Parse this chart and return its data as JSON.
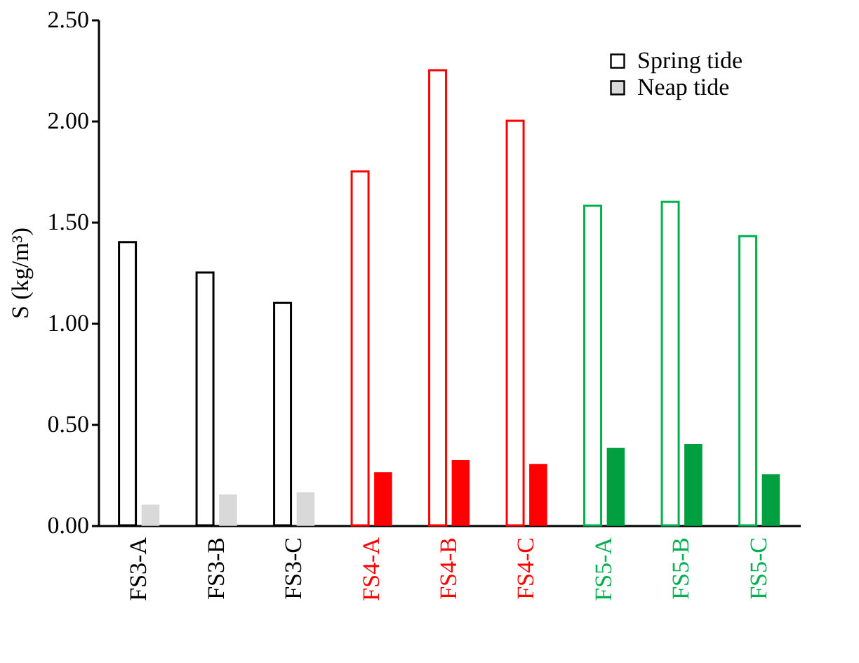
{
  "chart_data": {
    "type": "bar",
    "ylabel": "S (kg/m³)",
    "categories": [
      "FS3-A",
      "FS3-B",
      "FS3-C",
      "FS4-A",
      "FS4-B",
      "FS4-C",
      "FS5-A",
      "FS5-B",
      "FS5-C"
    ],
    "series": [
      {
        "name": "Spring tide",
        "colors": [
          "#000000",
          "#000000",
          "#000000",
          "#ff0000",
          "#ff0000",
          "#ff0000",
          "#00b050",
          "#00b050",
          "#00b050"
        ],
        "values": [
          1.4,
          1.25,
          1.1,
          1.75,
          2.25,
          2.0,
          1.58,
          1.6,
          1.43
        ]
      },
      {
        "name": "Neap tide",
        "colors": [
          "#d9d9d9",
          "#d9d9d9",
          "#d9d9d9",
          "#ff0000",
          "#ff0000",
          "#ff0000",
          "#00a040",
          "#00a040",
          "#00a040"
        ],
        "values": [
          0.1,
          0.15,
          0.16,
          0.26,
          0.32,
          0.3,
          0.38,
          0.4,
          0.25
        ]
      }
    ],
    "ylim": [
      0,
      2.5
    ],
    "yticks": [
      {
        "value": 0,
        "label": "0.00"
      },
      {
        "value": 0.5,
        "label": "0.50"
      },
      {
        "value": 1,
        "label": "1.00"
      },
      {
        "value": 1.5,
        "label": "1.50"
      },
      {
        "value": 2,
        "label": "2.00"
      },
      {
        "value": 2.5,
        "label": "2.50"
      }
    ],
    "legend": "top right",
    "grid": false
  }
}
